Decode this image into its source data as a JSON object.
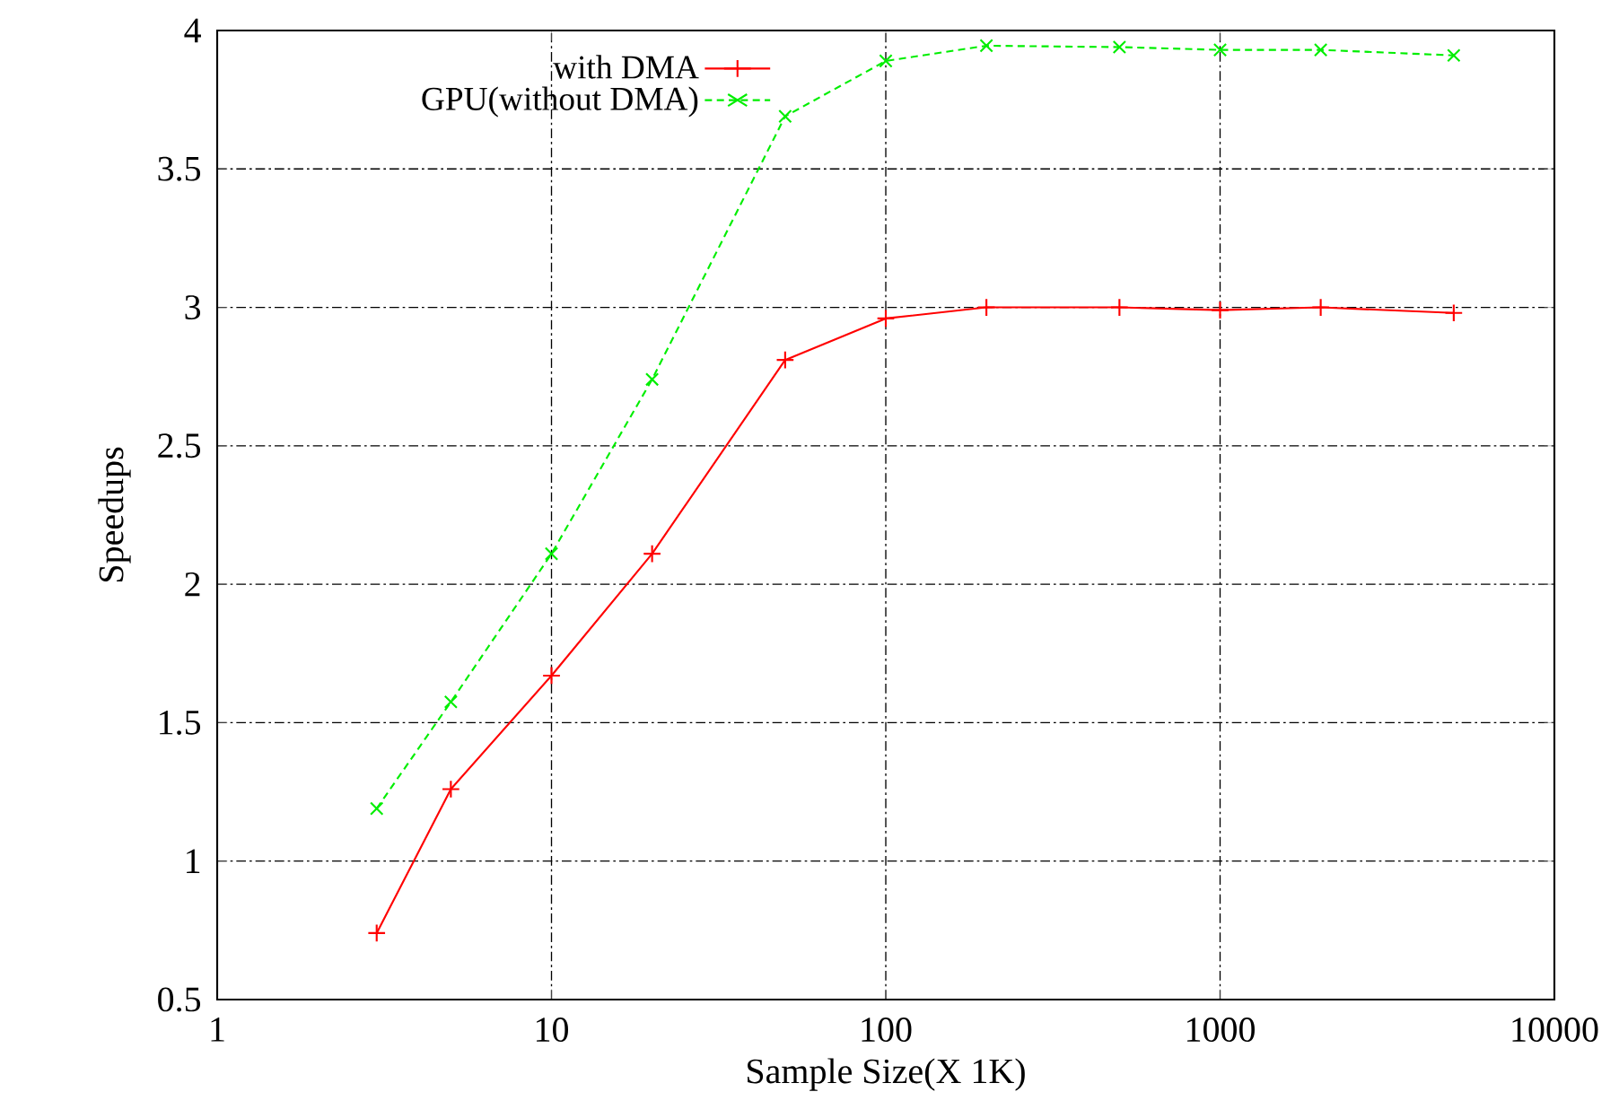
{
  "chart_data": {
    "type": "line",
    "xlabel": "Sample Size(X 1K)",
    "ylabel": "Speedups",
    "log": "x",
    "x": [
      3,
      5,
      10,
      20,
      50,
      100,
      200,
      500,
      1000,
      2000,
      5000
    ],
    "series": [
      {
        "name": "with DMA",
        "color": "#ff0000",
        "marker": "plus",
        "line_style": "solid",
        "values": [
          0.74,
          1.26,
          1.67,
          2.11,
          2.81,
          2.96,
          3.0,
          3.0,
          2.99,
          3.0,
          2.98
        ]
      },
      {
        "name": "GPU(without DMA)",
        "color": "#00ee00",
        "marker": "cross",
        "line_style": "dashed",
        "values": [
          1.19,
          1.575,
          2.11,
          2.74,
          3.69,
          3.89,
          3.945,
          3.94,
          3.93,
          3.93,
          3.91
        ]
      }
    ],
    "xlim": [
      1,
      10000
    ],
    "xticks": [
      1,
      10,
      100,
      1000,
      10000
    ],
    "ylim": [
      0.5,
      4
    ],
    "yticks": [
      0.5,
      1,
      1.5,
      2,
      2.5,
      3,
      3.5,
      4
    ],
    "grid": true,
    "legend": "top"
  }
}
